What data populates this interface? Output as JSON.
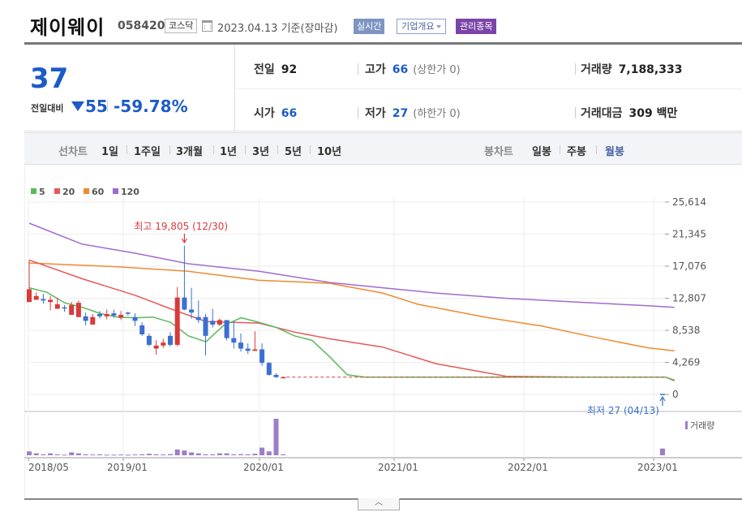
{
  "header": {
    "stock_name": "제이웨이",
    "stock_code": "058420",
    "market": "코스닥",
    "date_text": "2023.04.13 기준(장마감)",
    "btn_realtime": "실시간",
    "btn_overview": "기업개요",
    "btn_managed": "관리종목"
  },
  "quote": {
    "price": "37",
    "change_label": "전일대비",
    "change_amount": "55",
    "change_pct": "-59.78%",
    "prev_close_label": "전일",
    "prev_close": "92",
    "high_label": "고가",
    "high": "66",
    "high_note": "(상한가 0)",
    "volume_label": "거래량",
    "volume": "7,188,333",
    "open_label": "시가",
    "open": "66",
    "low_label": "저가",
    "low": "27",
    "low_note": "(하한가 0)",
    "amount_label": "거래대금",
    "amount": "309 백만"
  },
  "periods": {
    "line_label": "선차트",
    "line_items": [
      "1일",
      "1주일",
      "3개월",
      "1년",
      "3년",
      "5년",
      "10년"
    ],
    "candle_label": "봉차트",
    "candle_items": [
      "일봉",
      "주봉",
      "월봉"
    ],
    "active_candle": "월봉"
  },
  "colors": {
    "up": "#d93a3a",
    "down": "#3b6fd1",
    "ma5": "#5cb85c",
    "ma20": "#e8585a",
    "ma60": "#f08a30",
    "ma120": "#a06bd0",
    "volume": "#9c7ec9"
  },
  "chart_data": {
    "type": "candlestick",
    "legend": [
      {
        "name": "5",
        "color": "#5cb85c"
      },
      {
        "name": "20",
        "color": "#e8585a"
      },
      {
        "name": "60",
        "color": "#f08a30"
      },
      {
        "name": "120",
        "color": "#a06bd0"
      }
    ],
    "y_ticks": [
      "25,614",
      "21,345",
      "17,076",
      "12,807",
      "8,538",
      "4,269",
      "0"
    ],
    "ylim": [
      0,
      25614
    ],
    "x_ticks": [
      "2018/05",
      "2019/01",
      "2020/01",
      "2021/01",
      "2022/01",
      "2023/01"
    ],
    "max_annotation": "최고 19,805 (12/30)",
    "min_annotation": "최저 27 (04/13)",
    "volume_label": "거래량",
    "candles": [
      {
        "t": 0,
        "o": 12300,
        "h": 17800,
        "l": 12300,
        "c": 14000
      },
      {
        "t": 1,
        "o": 12600,
        "h": 13600,
        "l": 12600,
        "c": 13100
      },
      {
        "t": 2,
        "o": 12700,
        "h": 13400,
        "l": 12100,
        "c": 12500
      },
      {
        "t": 3,
        "o": 12300,
        "h": 13100,
        "l": 11200,
        "c": 12600
      },
      {
        "t": 4,
        "o": 11400,
        "h": 12900,
        "l": 11400,
        "c": 12000
      },
      {
        "t": 5,
        "o": 11600,
        "h": 11900,
        "l": 11000,
        "c": 11500
      },
      {
        "t": 6,
        "o": 10600,
        "h": 12300,
        "l": 10600,
        "c": 11900
      },
      {
        "t": 7,
        "o": 10300,
        "h": 12500,
        "l": 10300,
        "c": 12200
      },
      {
        "t": 8,
        "o": 10400,
        "h": 10900,
        "l": 9200,
        "c": 9800
      },
      {
        "t": 9,
        "o": 9300,
        "h": 10700,
        "l": 9300,
        "c": 10300
      },
      {
        "t": 10,
        "o": 10700,
        "h": 11100,
        "l": 10100,
        "c": 10400
      },
      {
        "t": 11,
        "o": 10400,
        "h": 11300,
        "l": 10000,
        "c": 10700
      },
      {
        "t": 12,
        "o": 10800,
        "h": 11300,
        "l": 10200,
        "c": 10500
      },
      {
        "t": 13,
        "o": 10200,
        "h": 11100,
        "l": 9900,
        "c": 10600
      },
      {
        "t": 14,
        "o": 10900,
        "h": 11000,
        "l": 10500,
        "c": 10800
      },
      {
        "t": 15,
        "o": 10300,
        "h": 10800,
        "l": 9100,
        "c": 9800
      },
      {
        "t": 16,
        "o": 9200,
        "h": 9600,
        "l": 7800,
        "c": 8000
      },
      {
        "t": 17,
        "o": 7800,
        "h": 8100,
        "l": 6400,
        "c": 6600
      },
      {
        "t": 18,
        "o": 6100,
        "h": 7200,
        "l": 5300,
        "c": 6500
      },
      {
        "t": 19,
        "o": 6500,
        "h": 7400,
        "l": 6200,
        "c": 6900
      },
      {
        "t": 20,
        "o": 7800,
        "h": 8300,
        "l": 6400,
        "c": 6600
      },
      {
        "t": 21,
        "o": 6600,
        "h": 14300,
        "l": 6400,
        "c": 12900
      },
      {
        "t": 22,
        "o": 12900,
        "h": 19805,
        "l": 11200,
        "c": 11300
      },
      {
        "t": 23,
        "o": 11300,
        "h": 14200,
        "l": 10100,
        "c": 10900
      },
      {
        "t": 24,
        "o": 10300,
        "h": 12500,
        "l": 9500,
        "c": 9900
      },
      {
        "t": 25,
        "o": 10300,
        "h": 10700,
        "l": 5200,
        "c": 7800
      },
      {
        "t": 26,
        "o": 9800,
        "h": 11400,
        "l": 8900,
        "c": 9300
      },
      {
        "t": 27,
        "o": 9300,
        "h": 10100,
        "l": 9100,
        "c": 9900
      },
      {
        "t": 28,
        "o": 9900,
        "h": 9900,
        "l": 7200,
        "c": 7500
      },
      {
        "t": 29,
        "o": 7500,
        "h": 9700,
        "l": 6100,
        "c": 6900
      },
      {
        "t": 30,
        "o": 6900,
        "h": 8100,
        "l": 5700,
        "c": 6100
      },
      {
        "t": 31,
        "o": 6100,
        "h": 6800,
        "l": 5400,
        "c": 5800
      },
      {
        "t": 32,
        "o": 5800,
        "h": 8400,
        "l": 5800,
        "c": 6000
      },
      {
        "t": 33,
        "o": 6000,
        "h": 6800,
        "l": 3800,
        "c": 4200
      },
      {
        "t": 34,
        "o": 4200,
        "h": 4300,
        "l": 2500,
        "c": 2600
      },
      {
        "t": 35,
        "o": 2600,
        "h": 2800,
        "l": 2200,
        "c": 2300
      },
      {
        "t": 36,
        "o": 2300,
        "h": 2400,
        "l": 2200,
        "c": 2300
      },
      {
        "t": 37,
        "o": 66,
        "h": 66,
        "l": 27,
        "c": 37
      }
    ],
    "volumes": [
      2,
      1,
      0.5,
      1,
      0.5,
      0.3,
      1.5,
      1,
      0.5,
      0.4,
      0.5,
      0.3,
      0.3,
      0.4,
      0.3,
      0.4,
      0.5,
      0.8,
      0.5,
      0.4,
      0.6,
      3,
      2.5,
      1.5,
      1,
      0.5,
      0.5,
      1,
      1,
      0.5,
      0.6,
      0.5,
      0.8,
      4,
      2,
      19,
      0.5,
      3.5
    ],
    "ma5": [
      [
        0,
        14200
      ],
      [
        2,
        13600
      ],
      [
        4,
        12200
      ],
      [
        6,
        11600
      ],
      [
        8,
        10800
      ],
      [
        10,
        10300
      ],
      [
        12,
        10200
      ],
      [
        14,
        10300
      ],
      [
        16,
        9600
      ],
      [
        18,
        7800
      ],
      [
        20,
        7000
      ],
      [
        22,
        9200
      ],
      [
        24,
        10200
      ],
      [
        26,
        9600
      ],
      [
        28,
        8900
      ],
      [
        30,
        7800
      ],
      [
        32,
        7200
      ],
      [
        34,
        5000
      ],
      [
        36,
        2600
      ],
      [
        38,
        2300
      ],
      [
        40,
        2300
      ],
      [
        48,
        2300
      ],
      [
        68,
        2300
      ],
      [
        72,
        2300
      ],
      [
        73,
        1800
      ]
    ],
    "ma20": [
      [
        0,
        17900
      ],
      [
        6,
        15400
      ],
      [
        12,
        13200
      ],
      [
        16,
        11400
      ],
      [
        20,
        9700
      ],
      [
        26,
        9500
      ],
      [
        30,
        8300
      ],
      [
        34,
        7400
      ],
      [
        40,
        6300
      ],
      [
        46,
        4100
      ],
      [
        54,
        2400
      ],
      [
        62,
        2300
      ],
      [
        72,
        2300
      ],
      [
        73,
        1900
      ]
    ],
    "ma60": [
      [
        0,
        17500
      ],
      [
        10,
        17000
      ],
      [
        18,
        16400
      ],
      [
        26,
        15200
      ],
      [
        34,
        14800
      ],
      [
        40,
        13500
      ],
      [
        44,
        12000
      ],
      [
        52,
        10200
      ],
      [
        58,
        9100
      ],
      [
        64,
        7600
      ],
      [
        70,
        6200
      ],
      [
        73,
        5800
      ]
    ],
    "ma120": [
      [
        0,
        22800
      ],
      [
        6,
        20000
      ],
      [
        12,
        18800
      ],
      [
        18,
        17400
      ],
      [
        26,
        16400
      ],
      [
        34,
        14900
      ],
      [
        40,
        14200
      ],
      [
        46,
        13500
      ],
      [
        54,
        12800
      ],
      [
        62,
        12300
      ],
      [
        70,
        11800
      ],
      [
        73,
        11600
      ]
    ]
  }
}
